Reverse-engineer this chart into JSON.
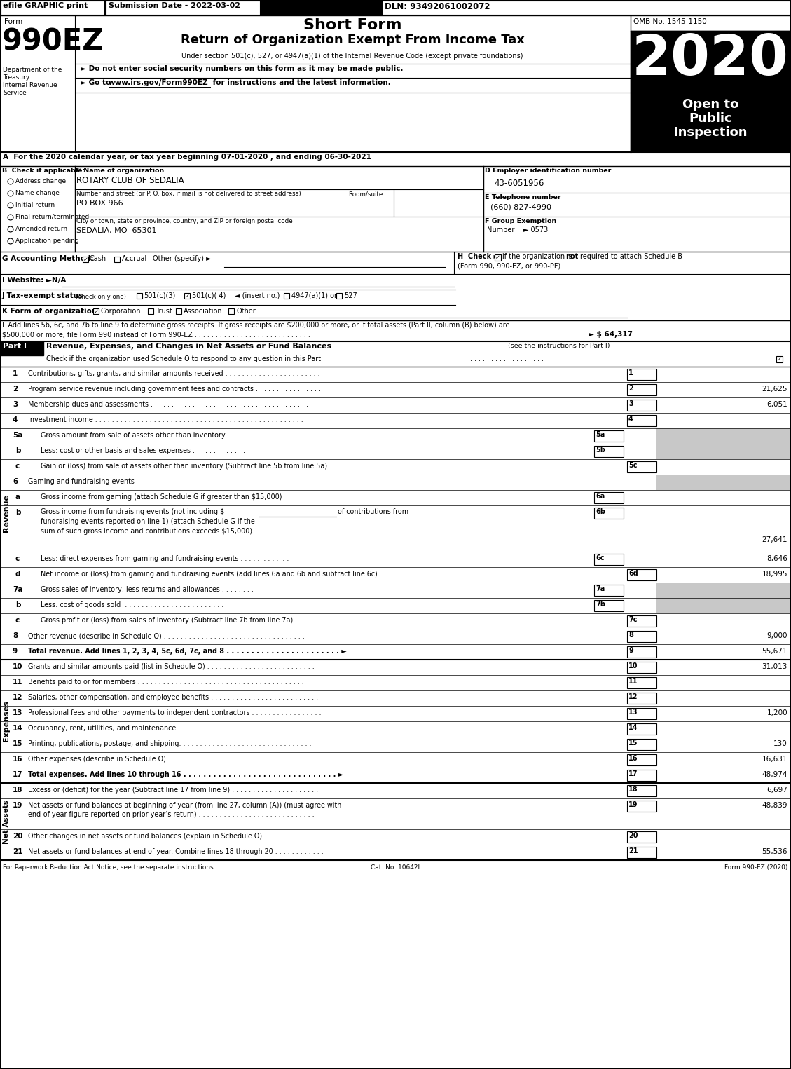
{
  "header_bar": {
    "efile_text": "efile GRAPHIC print",
    "submission_text": "Submission Date - 2022-03-02",
    "dln_text": "DLN: 93492061002072"
  },
  "form_title": {
    "short_form": "Short Form",
    "main_title": "Return of Organization Exempt From Income Tax",
    "subtitle": "Under section 501(c), 527, or 4947(a)(1) of the Internal Revenue Code (except private foundations)",
    "bullet1": "► Do not enter social security numbers on this form as it may be made public.",
    "bullet2_a": "► Go to ",
    "bullet2_url": "www.irs.gov/Form990EZ",
    "bullet2_b": " for instructions and the latest information.",
    "form_number": "990EZ",
    "form_label": "Form",
    "year": "2020",
    "omb": "OMB No. 1545-1150",
    "open_box": [
      "Open to",
      "Public",
      "Inspection"
    ]
  },
  "dept_label": [
    "Department of the",
    "Treasury",
    "Internal Revenue",
    "Service"
  ],
  "section_a": "A  For the 2020 calendar year, or tax year beginning 07-01-2020 , and ending 06-30-2021",
  "section_b": {
    "label": "B  Check if applicable:",
    "items": [
      "Address change",
      "Name change",
      "Initial return",
      "Final return/terminated",
      "Amended return",
      "Application pending"
    ]
  },
  "section_c": {
    "org_name": "ROTARY CLUB OF SEDALIA",
    "address_label": "Number and street (or P. O. box, if mail is not delivered to street address)",
    "room_label": "Room/suite",
    "address": "PO BOX 966",
    "city_label": "City or town, state or province, country, and ZIP or foreign postal code",
    "city": "SEDALIA, MO  65301"
  },
  "section_d": {
    "ein": "43-6051956"
  },
  "section_e": {
    "phone": "(660) 827-4990"
  },
  "section_f": {
    "number": "0573"
  },
  "section_l": {
    "text1": "L Add lines 5b, 6c, and 7b to line 9 to determine gross receipts. If gross receipts are $200,000 or more, or if total assets (Part II, column (B) below) are",
    "text2": "$500,000 or more, file Form 990 instead of Form 990-EZ",
    "amount": "► $ 64,317"
  },
  "footer": {
    "left": "For Paperwork Reduction Act Notice, see the separate instructions.",
    "center": "Cat. No. 10642I",
    "right": "Form 990-EZ (2020)"
  }
}
